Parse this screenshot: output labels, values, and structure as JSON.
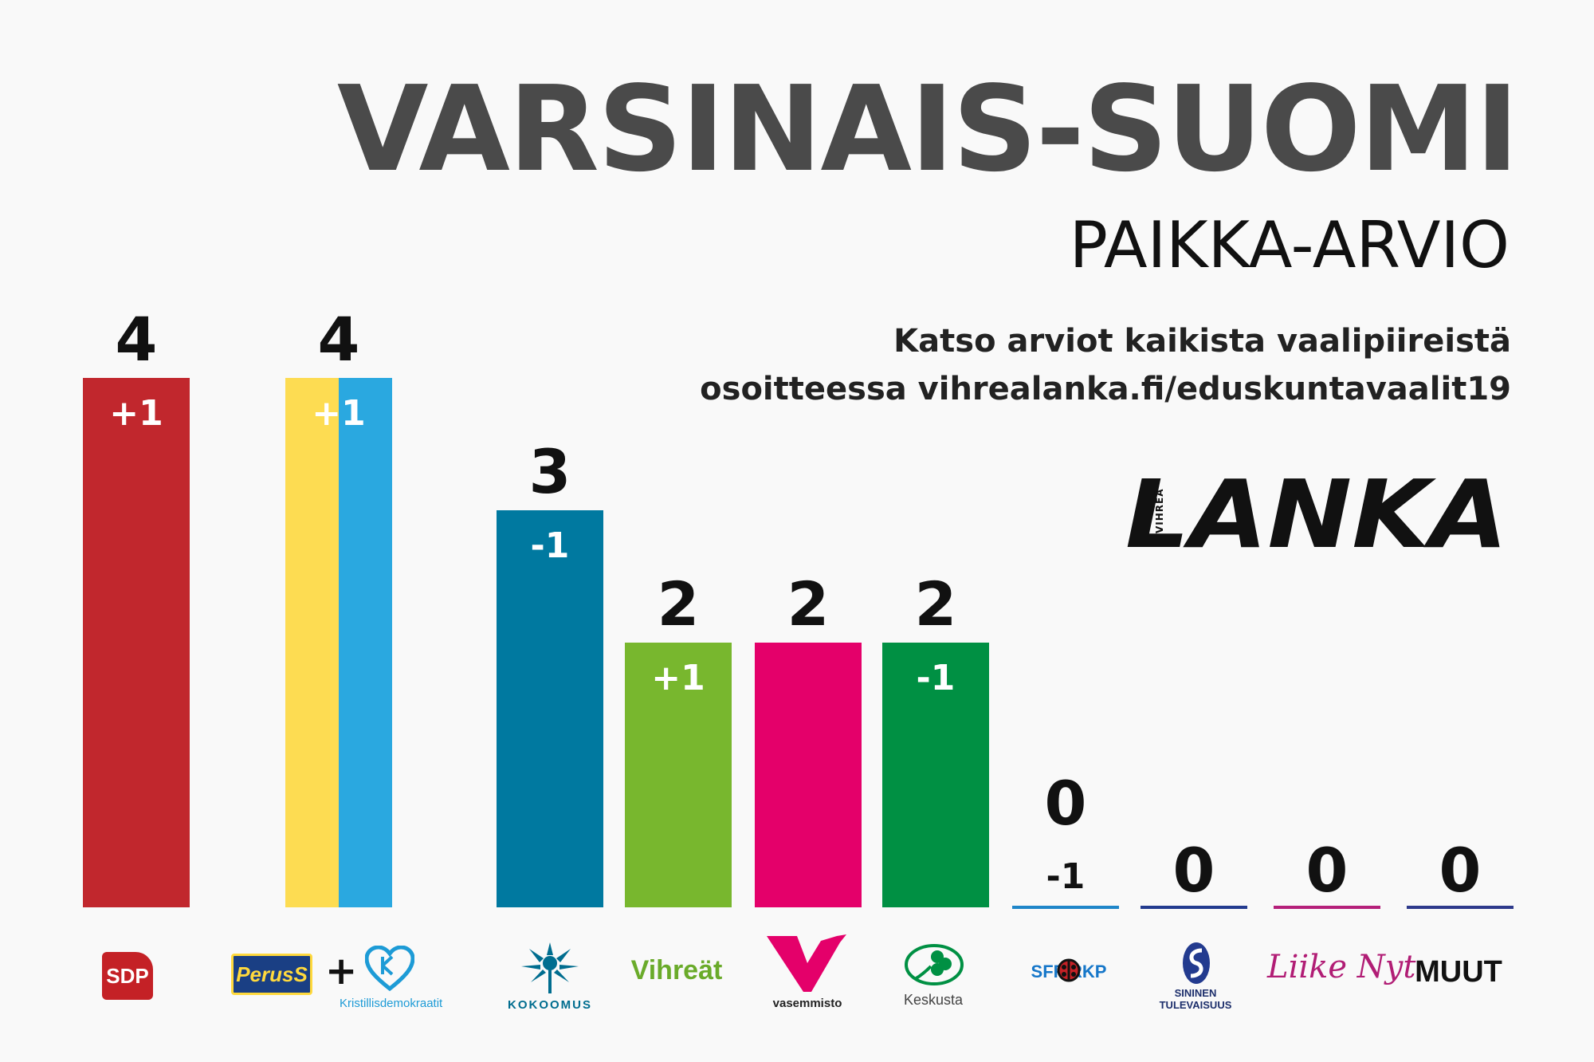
{
  "header": {
    "title": "VARSINAIS-SUOMI",
    "subtitle": "PAIKKA-ARVIO",
    "note_line1": "Katso arviot kaikista vaalipiireistä",
    "note_line2": "osoitteessa vihrealanka.fi/eduskuntavaalit19"
  },
  "logo": {
    "main": "LANKA",
    "vertical": "VIHREÄ"
  },
  "parties": {
    "sdp": "SDP",
    "perus": "PerusS",
    "plus": "+",
    "kd": "Kristillisdemokraatit",
    "kokoomus": "KOKOOMUS",
    "vihreat": "Vihreät",
    "vasemmisto": "vasemmisto",
    "keskusta": "Keskusta",
    "rkp": "SFP RKP",
    "sininen_1": "SININEN",
    "sininen_2": "TULEVAISUUS",
    "liike": "Liike Nyt",
    "muut": "MUUT"
  },
  "chart_data": {
    "type": "bar",
    "title": "PAIKKA-ARVIO",
    "ylim": [
      0,
      4
    ],
    "categories": [
      "SDP",
      "PS",
      "KD",
      "Kokoomus",
      "Vihreät",
      "Vasemmisto",
      "Keskusta",
      "RKP",
      "Sininen tulevaisuus",
      "Liike Nyt",
      "MUUT"
    ],
    "values": [
      4,
      4,
      0,
      3,
      2,
      2,
      2,
      0,
      0,
      0,
      0
    ],
    "groups": [
      {
        "party": "SDP",
        "seats": 4,
        "seats_label": "4",
        "change": "+1",
        "colors": [
          "#c1272d"
        ]
      },
      {
        "party": "PS + KD",
        "seats": 4,
        "seats_label": "4",
        "change": "+1",
        "colors": [
          "#fddc52",
          "#2aa8e0"
        ]
      },
      {
        "party": "Kokoomus",
        "seats": 3,
        "seats_label": "3",
        "change": "-1",
        "colors": [
          "#0079a0"
        ]
      },
      {
        "party": "Vihreät",
        "seats": 2,
        "seats_label": "2",
        "change": "+1",
        "colors": [
          "#78b72e"
        ]
      },
      {
        "party": "Vasemmisto",
        "seats": 2,
        "seats_label": "2",
        "change": "",
        "colors": [
          "#e4006a"
        ]
      },
      {
        "party": "Keskusta",
        "seats": 2,
        "seats_label": "2",
        "change": "-1",
        "colors": [
          "#009043"
        ]
      },
      {
        "party": "RKP",
        "seats": 0,
        "seats_label": "0",
        "change": "-1",
        "colors": [
          "#1f86c9"
        ]
      },
      {
        "party": "Sininen tulevaisuus",
        "seats": 0,
        "seats_label": "0",
        "change": "",
        "colors": [
          "#233b8f"
        ]
      },
      {
        "party": "Liike Nyt",
        "seats": 0,
        "seats_label": "0",
        "change": "",
        "colors": [
          "#b5207a"
        ]
      },
      {
        "party": "MUUT",
        "seats": 0,
        "seats_label": "0",
        "change": "",
        "colors": [
          "#2e3a8c"
        ]
      }
    ]
  }
}
